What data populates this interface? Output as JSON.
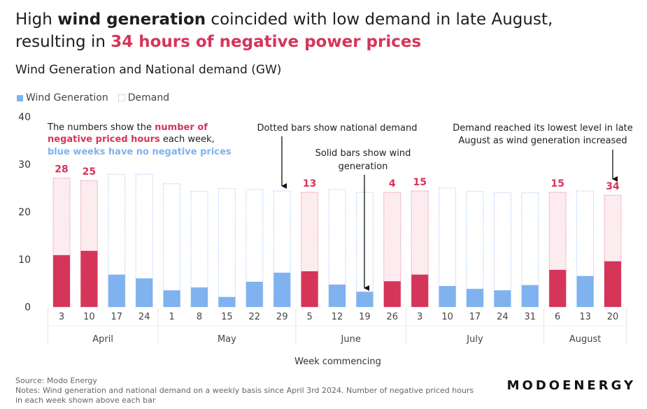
{
  "title": {
    "part1": "High ",
    "bold1": "wind generation",
    "part2": " coincided with low demand in late August,",
    "part3": "resulting in ",
    "highlight": "34 hours of negative power prices"
  },
  "subtitle": "Wind Generation and National demand (GW)",
  "colors": {
    "negative_week": "#d6355a",
    "no_negative_week": "#7fb2ef",
    "negative_demand_fill": "#fcecf0"
  },
  "chart_data": {
    "type": "bar",
    "xlabel": "Week commencing",
    "ylabel": "",
    "ylim": [
      0,
      40
    ],
    "yticks": [
      0,
      10,
      20,
      30,
      40
    ],
    "grid": false,
    "legend_placement": "top-left",
    "legend": [
      "Wind Generation",
      "Demand"
    ],
    "categories": [
      "3",
      "10",
      "17",
      "24",
      "1",
      "8",
      "15",
      "22",
      "29",
      "5",
      "12",
      "19",
      "26",
      "3",
      "10",
      "17",
      "24",
      "31",
      "6",
      "13",
      "20"
    ],
    "months": [
      {
        "label": "April",
        "count": 4
      },
      {
        "label": "May",
        "count": 5
      },
      {
        "label": "June",
        "count": 4
      },
      {
        "label": "July",
        "count": 5
      },
      {
        "label": "August",
        "count": 3
      }
    ],
    "series": [
      {
        "name": "Wind Generation",
        "values": [
          10.9,
          11.8,
          6.8,
          6.0,
          3.5,
          4.1,
          2.1,
          5.3,
          7.2,
          7.5,
          4.7,
          3.2,
          5.4,
          6.8,
          4.4,
          3.8,
          3.5,
          4.6,
          7.8,
          6.5,
          9.6
        ]
      },
      {
        "name": "Demand",
        "values": [
          27.1,
          26.6,
          27.9,
          27.9,
          25.9,
          24.3,
          24.9,
          24.7,
          24.4,
          24.1,
          24.7,
          24.1,
          24.1,
          24.4,
          25.0,
          24.3,
          24.0,
          24.0,
          24.1,
          24.4,
          23.5
        ]
      }
    ],
    "negative_priced_hours": [
      28,
      25,
      null,
      null,
      null,
      null,
      null,
      null,
      null,
      13,
      null,
      null,
      4,
      15,
      null,
      null,
      null,
      null,
      15,
      null,
      34
    ],
    "annotations": {
      "left": [
        {
          "text": "The numbers show the ",
          "color": "dark"
        },
        {
          "text": "number of",
          "color": "red"
        },
        {
          "text": "negative priced hours",
          "color": "red"
        },
        {
          "text": " each week,",
          "color": "dark"
        },
        {
          "text": "blue weeks have no negative prices",
          "color": "blue"
        }
      ],
      "dotted": "Dotted bars show national demand",
      "solid": [
        "Solid bars show wind",
        "generation"
      ],
      "right": [
        "Demand reached its lowest level in late",
        "August as wind generation increased"
      ]
    }
  },
  "footer": {
    "source": "Source: Modo Energy",
    "notes1": "Notes: Wind generation and national demand on a weekly basis since April 3rd 2024. Number of negative priced hours",
    "notes2": "in each week shown above each bar"
  },
  "logo": "MODOENERGY"
}
